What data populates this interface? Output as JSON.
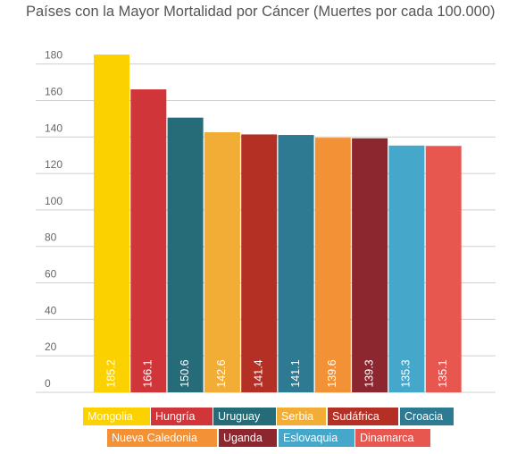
{
  "title": "Países con la Mayor Mortalidad por Cáncer (Muertes por cada 100.000)",
  "chart_data": {
    "type": "bar",
    "title": "Países con la Mayor Mortalidad por Cáncer (Muertes por cada 100.000)",
    "categories": [
      "Mongolia",
      "Hungría",
      "Uruguay",
      "Serbia",
      "Sudáfrica",
      "Croacia",
      "Nueva Caledonia",
      "Uganda",
      "Eslovaquia",
      "Dinamarca"
    ],
    "values": [
      185.2,
      166.1,
      150.6,
      142.6,
      141.4,
      141.1,
      139.6,
      139.3,
      135.3,
      135.1
    ],
    "value_labels": [
      "185.2",
      "166.1",
      "150.6",
      "142.6",
      "141.4",
      "141.1",
      "139.6",
      "139.3",
      "135.3",
      "135.1"
    ],
    "colors": [
      "#fcd100",
      "#d0353a",
      "#256b78",
      "#f1ad36",
      "#b42f24",
      "#2d7a92",
      "#f39137",
      "#8c2730",
      "#45a7ca",
      "#e8574f"
    ],
    "yticks": [
      "0",
      "20",
      "40",
      "60",
      "80",
      "100",
      "120",
      "140",
      "160",
      "180"
    ],
    "ylim": [
      0,
      196
    ],
    "grid": true,
    "legend_position": "bottom"
  }
}
